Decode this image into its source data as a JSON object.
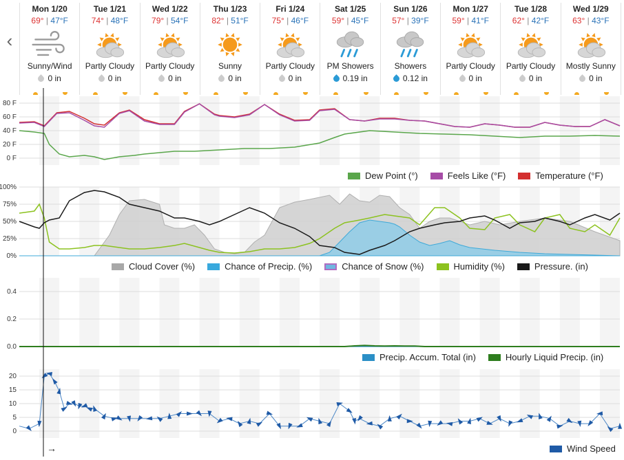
{
  "days": [
    {
      "label": "Mon 1/20",
      "hi": "69°",
      "lo": "47°F",
      "icon": "wind-icon",
      "cond": "Sunny/Wind",
      "precip": "0 in",
      "wet": false
    },
    {
      "label": "Tue 1/21",
      "hi": "74°",
      "lo": "48°F",
      "icon": "partly-cloudy-icon",
      "cond": "Partly Cloudy",
      "precip": "0 in",
      "wet": false
    },
    {
      "label": "Wed 1/22",
      "hi": "79°",
      "lo": "54°F",
      "icon": "partly-cloudy-icon",
      "cond": "Partly Cloudy",
      "precip": "0 in",
      "wet": false
    },
    {
      "label": "Thu 1/23",
      "hi": "82°",
      "lo": "51°F",
      "icon": "sunny-icon",
      "cond": "Sunny",
      "precip": "0 in",
      "wet": false
    },
    {
      "label": "Fri 1/24",
      "hi": "75°",
      "lo": "46°F",
      "icon": "partly-cloudy-icon",
      "cond": "Partly Cloudy",
      "precip": "0 in",
      "wet": false
    },
    {
      "label": "Sat 1/25",
      "hi": "59°",
      "lo": "45°F",
      "icon": "rain-icon",
      "cond": "PM Showers",
      "precip": "0.19 in",
      "wet": true
    },
    {
      "label": "Sun 1/26",
      "hi": "57°",
      "lo": "39°F",
      "icon": "rain-icon",
      "cond": "Showers",
      "precip": "0.12 in",
      "wet": true
    },
    {
      "label": "Mon 1/27",
      "hi": "59°",
      "lo": "41°F",
      "icon": "partly-cloudy-icon",
      "cond": "Partly Cloudy",
      "precip": "0 in",
      "wet": false
    },
    {
      "label": "Tue 1/28",
      "hi": "62°",
      "lo": "42°F",
      "icon": "partly-cloudy-icon",
      "cond": "Partly Cloudy",
      "precip": "0 in",
      "wet": false
    },
    {
      "label": "Wed 1/29",
      "hi": "63°",
      "lo": "43°F",
      "icon": "partly-cloudy-icon",
      "cond": "Mostly Sunny",
      "precip": "0 in",
      "wet": false
    }
  ],
  "nav": {
    "prev_icon": "chevron-left-icon",
    "prev_glyph": "‹",
    "arrow_glyph": "→"
  },
  "colors": {
    "temperature": "#d32f2f",
    "feels_like": "#a64ca6",
    "dew_point": "#5aa64b",
    "cloud": "#bfbfbf",
    "precip_chance": "#5fb6dd",
    "snow": "#b06cc0",
    "humidity": "#8cc21f",
    "pressure": "#1a1a1a",
    "accum": "#2b8fc6",
    "hourly": "#2e7d1e",
    "wind": "#1f5aa6"
  },
  "legends": {
    "temp": [
      "Dew Point (°)",
      "Feels Like (°F)",
      "Temperature (°F)"
    ],
    "pct": [
      "Cloud Cover (%)",
      "Chance of Precip. (%)",
      "Chance of Snow (%)",
      "Humidity (%)",
      "Pressure. (in)"
    ],
    "precip": [
      "Precip. Accum. Total (in)",
      "Hourly Liquid Precip. (in)"
    ],
    "wind": [
      "Wind Speed"
    ]
  },
  "chart_data": [
    {
      "type": "line",
      "id": "temperature",
      "ylabels": [
        "80 F",
        "60 F",
        "40 F",
        "20 F",
        "0 F"
      ],
      "ylim": [
        0,
        80
      ],
      "xlim": [
        0,
        240
      ],
      "series": [
        {
          "name": "Temperature (°F)",
          "x": [
            0,
            6,
            10,
            15,
            20,
            26,
            30,
            34,
            40,
            44,
            50,
            56,
            62,
            66,
            72,
            78,
            80,
            86,
            92,
            98,
            104,
            110,
            116,
            120,
            126,
            132,
            138,
            144,
            150,
            156,
            162,
            168,
            174,
            180,
            186,
            192,
            198,
            204,
            210,
            216,
            222,
            228,
            234,
            240
          ],
          "y": [
            52,
            53,
            47,
            66,
            68,
            58,
            50,
            48,
            66,
            70,
            56,
            50,
            50,
            68,
            79,
            64,
            62,
            60,
            64,
            78,
            64,
            55,
            56,
            70,
            72,
            56,
            54,
            58,
            58,
            55,
            54,
            50,
            46,
            45,
            50,
            48,
            45,
            45,
            52,
            48,
            46,
            46,
            56,
            47
          ]
        },
        {
          "name": "Feels Like (°F)",
          "x": [
            0,
            6,
            10,
            15,
            20,
            26,
            30,
            34,
            40,
            44,
            50,
            56,
            62,
            66,
            72,
            78,
            80,
            86,
            92,
            98,
            104,
            110,
            116,
            120,
            126,
            132,
            138,
            144,
            150,
            156,
            162,
            168,
            174,
            180,
            186,
            192,
            198,
            204,
            210,
            216,
            222,
            228,
            234,
            240
          ],
          "y": [
            51,
            52,
            46,
            65,
            66,
            55,
            47,
            45,
            65,
            69,
            54,
            49,
            49,
            67,
            79,
            63,
            61,
            59,
            63,
            78,
            63,
            54,
            55,
            69,
            71,
            56,
            54,
            57,
            57,
            55,
            54,
            50,
            46,
            45,
            50,
            48,
            45,
            45,
            52,
            48,
            46,
            46,
            56,
            47
          ]
        },
        {
          "name": "Dew Point (°)",
          "x": [
            0,
            6,
            10,
            12,
            16,
            20,
            26,
            30,
            34,
            40,
            46,
            50,
            56,
            62,
            70,
            80,
            90,
            100,
            110,
            120,
            126,
            130,
            140,
            150,
            160,
            170,
            180,
            190,
            200,
            210,
            220,
            230,
            240
          ],
          "y": [
            40,
            38,
            36,
            20,
            6,
            2,
            4,
            2,
            -2,
            2,
            4,
            6,
            8,
            10,
            10,
            12,
            14,
            14,
            16,
            22,
            30,
            35,
            40,
            38,
            36,
            35,
            34,
            32,
            30,
            32,
            32,
            33,
            32
          ]
        }
      ]
    },
    {
      "type": "area",
      "id": "percent",
      "ylabels": [
        "100%",
        "75%",
        "50%",
        "25%",
        "0%"
      ],
      "ylim": [
        0,
        100
      ],
      "xlim": [
        0,
        240
      ],
      "series": [
        {
          "name": "Cloud Cover (%)",
          "x": [
            0,
            20,
            26,
            30,
            36,
            40,
            44,
            50,
            56,
            58,
            62,
            66,
            70,
            74,
            78,
            82,
            86,
            90,
            94,
            98,
            104,
            110,
            116,
            120,
            124,
            128,
            132,
            136,
            140,
            144,
            148,
            152,
            156,
            160,
            164,
            168,
            172,
            176,
            180,
            186,
            192,
            200,
            210,
            220,
            230,
            240
          ],
          "y": [
            0,
            0,
            0,
            0,
            30,
            60,
            80,
            82,
            75,
            45,
            40,
            40,
            45,
            30,
            10,
            5,
            3,
            5,
            20,
            30,
            70,
            78,
            82,
            85,
            88,
            75,
            90,
            80,
            78,
            88,
            86,
            70,
            60,
            40,
            50,
            55,
            55,
            50,
            45,
            50,
            45,
            50,
            55,
            50,
            35,
            22
          ]
        },
        {
          "name": "Chance of Precip. (%)",
          "x": [
            0,
            120,
            124,
            128,
            132,
            136,
            140,
            144,
            148,
            150,
            152,
            156,
            160,
            164,
            168,
            172,
            176,
            180,
            190,
            200,
            210,
            220,
            230,
            240
          ],
          "y": [
            0,
            0,
            5,
            20,
            35,
            48,
            52,
            50,
            48,
            46,
            42,
            30,
            20,
            15,
            18,
            22,
            16,
            12,
            8,
            5,
            3,
            2,
            1,
            0
          ]
        },
        {
          "name": "Humidity (%)",
          "x": [
            0,
            6,
            8,
            10,
            12,
            16,
            20,
            26,
            30,
            34,
            40,
            44,
            50,
            56,
            62,
            66,
            72,
            76,
            80,
            86,
            92,
            98,
            104,
            110,
            116,
            120,
            126,
            130,
            136,
            140,
            146,
            150,
            156,
            160,
            166,
            170,
            176,
            180,
            186,
            190,
            196,
            200,
            206,
            210,
            216,
            220,
            226,
            230,
            236,
            240
          ],
          "y": [
            62,
            65,
            75,
            55,
            20,
            10,
            10,
            12,
            15,
            15,
            12,
            10,
            10,
            12,
            15,
            18,
            12,
            8,
            5,
            4,
            6,
            10,
            10,
            12,
            18,
            25,
            40,
            48,
            52,
            55,
            60,
            58,
            55,
            45,
            70,
            70,
            55,
            40,
            38,
            55,
            60,
            45,
            35,
            55,
            60,
            40,
            35,
            45,
            30,
            55
          ]
        },
        {
          "name": "Pressure. (in)",
          "x": [
            0,
            6,
            8,
            10,
            12,
            16,
            20,
            26,
            30,
            34,
            40,
            44,
            50,
            56,
            62,
            66,
            72,
            76,
            80,
            86,
            92,
            98,
            104,
            110,
            116,
            120,
            126,
            130,
            136,
            140,
            146,
            150,
            156,
            160,
            166,
            170,
            176,
            180,
            186,
            190,
            196,
            200,
            206,
            210,
            216,
            220,
            226,
            230,
            236,
            240
          ],
          "y": [
            50,
            42,
            40,
            48,
            52,
            55,
            80,
            92,
            95,
            93,
            85,
            75,
            70,
            65,
            55,
            55,
            50,
            45,
            50,
            60,
            70,
            62,
            48,
            40,
            28,
            15,
            12,
            5,
            2,
            8,
            15,
            22,
            35,
            40,
            45,
            48,
            50,
            55,
            58,
            52,
            40,
            48,
            50,
            55,
            50,
            45,
            55,
            60,
            52,
            62
          ]
        }
      ]
    },
    {
      "type": "line",
      "id": "precip",
      "ylabels": [
        "0.4",
        "0.2",
        "0.0"
      ],
      "ylim": [
        0,
        0.5
      ],
      "xlim": [
        0,
        240
      ],
      "series": [
        {
          "name": "Precip. Accum. Total (in)",
          "x": [
            0,
            240
          ],
          "y": [
            0,
            0
          ]
        },
        {
          "name": "Hourly Liquid Precip. (in)",
          "x": [
            0,
            130,
            134,
            138,
            142,
            146,
            150,
            154,
            158,
            162,
            240
          ],
          "y": [
            0,
            0,
            0.005,
            0.008,
            0.005,
            0.004,
            0.005,
            0.004,
            0.004,
            0,
            0
          ]
        }
      ]
    },
    {
      "type": "line",
      "id": "wind",
      "ylabels": [
        "20",
        "15",
        "10",
        "5",
        "0"
      ],
      "ylim": [
        0,
        22
      ],
      "xlim": [
        0,
        240
      ],
      "series": [
        {
          "name": "Wind Speed",
          "x": [
            0,
            4,
            8,
            10,
            12,
            14,
            16,
            18,
            20,
            22,
            24,
            26,
            28,
            30,
            34,
            38,
            40,
            44,
            48,
            52,
            56,
            60,
            64,
            68,
            72,
            76,
            80,
            84,
            88,
            92,
            96,
            100,
            104,
            108,
            112,
            116,
            120,
            124,
            128,
            132,
            134,
            136,
            140,
            144,
            148,
            152,
            156,
            160,
            164,
            168,
            172,
            176,
            180,
            184,
            188,
            192,
            196,
            200,
            204,
            208,
            212,
            216,
            220,
            224,
            228,
            232,
            236,
            240
          ],
          "y": [
            2,
            1,
            3,
            22,
            23,
            20,
            16,
            9,
            11,
            11,
            10,
            10,
            9,
            9,
            6,
            5,
            5,
            5,
            5,
            5,
            5,
            6,
            7,
            7,
            7,
            7,
            4,
            5,
            3,
            4,
            3,
            7,
            2,
            2,
            2,
            5,
            4,
            3,
            11,
            8,
            4,
            5,
            3,
            2,
            5,
            6,
            4,
            2,
            3,
            3,
            3,
            4,
            4,
            5,
            3,
            5,
            3,
            4,
            6,
            6,
            5,
            2,
            4,
            3,
            3,
            7,
            1,
            2
          ]
        }
      ]
    }
  ]
}
